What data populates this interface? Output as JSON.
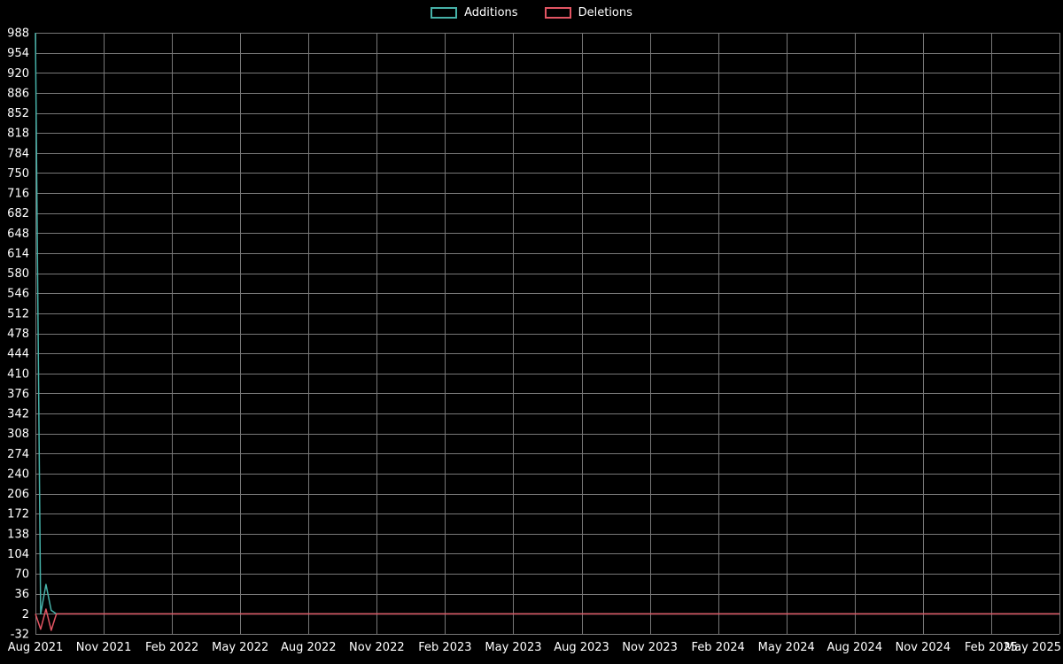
{
  "chart_data": {
    "type": "line",
    "title": "",
    "legend_position": "top-center",
    "grid": true,
    "background": "#000000",
    "grid_color": "#787878",
    "text_color": "#ffffff",
    "x_tick_labels": [
      "Aug 2021",
      "Nov 2021",
      "Feb 2022",
      "May 2022",
      "Aug 2022",
      "Nov 2022",
      "Feb 2023",
      "May 2023",
      "Aug 2023",
      "Nov 2023",
      "Feb 2024",
      "May 2024",
      "Aug 2024",
      "Nov 2024",
      "Feb 2025",
      "May 2025"
    ],
    "x_tick_step_weeks": 13,
    "x_weeks_total": 195,
    "y_tick_labels": [
      988,
      954,
      920,
      886,
      852,
      818,
      784,
      750,
      716,
      682,
      648,
      614,
      580,
      546,
      512,
      478,
      444,
      410,
      376,
      342,
      308,
      274,
      240,
      206,
      172,
      138,
      104,
      70,
      36,
      2,
      -32
    ],
    "ylim": [
      -32,
      988
    ],
    "xlabel": "",
    "ylabel": "",
    "series": [
      {
        "name": "Additions",
        "color": "#46b1a8",
        "points": [
          [
            0,
            988
          ],
          [
            1,
            2
          ],
          [
            2,
            52
          ],
          [
            3,
            8
          ],
          [
            4,
            2
          ],
          [
            195,
            2
          ]
        ]
      },
      {
        "name": "Deletions",
        "color": "#e25563",
        "points": [
          [
            0,
            2
          ],
          [
            1,
            -24
          ],
          [
            2,
            10
          ],
          [
            3,
            -26
          ],
          [
            4,
            2
          ],
          [
            195,
            2
          ]
        ]
      }
    ]
  }
}
